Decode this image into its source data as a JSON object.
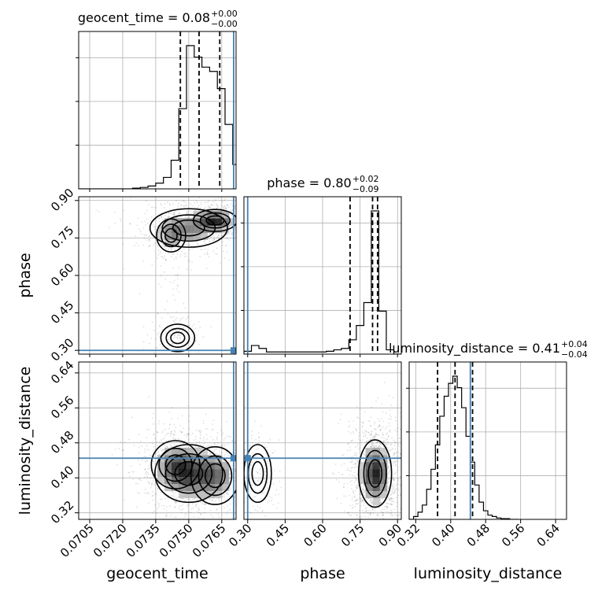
{
  "chart_data": {
    "type": "corner",
    "parameters": [
      "geocent_time",
      "phase",
      "luminosity_distance"
    ],
    "truth_color": "#4682b4",
    "truths": {
      "geocent_time": 0.07704,
      "phase": 0.3,
      "luminosity_distance": 0.445
    },
    "axes_ranges": {
      "geocent_time": [
        0.07,
        0.07715
      ],
      "phase": [
        0.285,
        0.915
      ],
      "luminosity_distance": [
        0.305,
        0.665
      ]
    },
    "ticks": {
      "geocent_time": {
        "values": [
          0.0705,
          0.072,
          0.0735,
          0.075,
          0.0765
        ],
        "labels": [
          "0.0705",
          "0.0720",
          "0.0735",
          "0.0750",
          "0.0765"
        ]
      },
      "phase": {
        "values": [
          0.3,
          0.45,
          0.6,
          0.75,
          0.9
        ],
        "labels": [
          "0.30",
          "0.45",
          "0.60",
          "0.75",
          "0.90"
        ]
      },
      "luminosity_distance": {
        "values": [
          0.32,
          0.4,
          0.48,
          0.56,
          0.64
        ],
        "labels": [
          "0.32",
          "0.40",
          "0.48",
          "0.56",
          "0.64"
        ]
      }
    },
    "titles": [
      {
        "param": "geocent_time",
        "base": "geocent_time = 0.08",
        "sup": "+0.00",
        "sub": "−0.00"
      },
      {
        "param": "phase",
        "base": "phase = 0.80",
        "sup": "+0.02",
        "sub": "−0.09"
      },
      {
        "param": "luminosity_distance",
        "base": "luminosity_distance = 0.41",
        "sup": "+0.04",
        "sub": "−0.04"
      }
    ],
    "axis_labels": {
      "x": [
        "geocent_time",
        "phase",
        "luminosity_distance"
      ],
      "y": [
        "phase",
        "luminosity_distance"
      ]
    },
    "quantiles": {
      "geocent_time": [
        0.07462,
        0.07547,
        0.07641
      ],
      "phase": [
        0.71,
        0.8,
        0.82
      ],
      "luminosity_distance": [
        0.37,
        0.41,
        0.45
      ]
    },
    "histograms": {
      "geocent_time": {
        "edges": [
          0.07,
          0.07035,
          0.0707,
          0.07105,
          0.0714,
          0.07175,
          0.0721,
          0.07245,
          0.0728,
          0.07315,
          0.0735,
          0.07385,
          0.0742,
          0.07455,
          0.0749,
          0.07525,
          0.0756,
          0.07595,
          0.0763,
          0.07665,
          0.077,
          0.07715
        ],
        "counts": [
          0.0,
          0.0,
          0.0,
          0.0,
          0.0,
          0.0,
          0.0,
          0.005,
          0.01,
          0.02,
          0.04,
          0.08,
          0.2,
          0.56,
          1.0,
          0.92,
          0.85,
          0.82,
          0.7,
          0.45,
          0.17
        ]
      },
      "phase": {
        "edges": [
          0.285,
          0.315,
          0.345,
          0.375,
          0.405,
          0.435,
          0.465,
          0.495,
          0.525,
          0.555,
          0.585,
          0.615,
          0.645,
          0.675,
          0.705,
          0.735,
          0.765,
          0.795,
          0.825,
          0.855,
          0.885,
          0.915
        ],
        "counts": [
          0.02,
          0.06,
          0.04,
          0.015,
          0.015,
          0.015,
          0.015,
          0.015,
          0.015,
          0.015,
          0.015,
          0.02,
          0.03,
          0.04,
          0.1,
          0.2,
          0.36,
          1.0,
          0.3,
          0.03,
          0.0
        ]
      },
      "luminosity_distance": {
        "edges": [
          0.305,
          0.315,
          0.325,
          0.335,
          0.345,
          0.355,
          0.365,
          0.375,
          0.385,
          0.395,
          0.405,
          0.415,
          0.425,
          0.435,
          0.445,
          0.455,
          0.465,
          0.475,
          0.485,
          0.495,
          0.505,
          0.515,
          0.525,
          0.535,
          0.545,
          0.555
        ],
        "counts": [
          0.0,
          0.02,
          0.05,
          0.1,
          0.21,
          0.35,
          0.52,
          0.72,
          0.86,
          0.95,
          1.0,
          0.92,
          0.78,
          0.58,
          0.4,
          0.24,
          0.12,
          0.06,
          0.03,
          0.02,
          0.01,
          0.005,
          0.005,
          0.0,
          0.0
        ]
      }
    },
    "density_blobs": {
      "geocent_time_vs_phase": [
        {
          "x": 0.0762,
          "y": 0.82,
          "sx": 0.00045,
          "sy": 0.02,
          "w": 1.0
        },
        {
          "x": 0.075,
          "y": 0.79,
          "sx": 0.0008,
          "sy": 0.035,
          "w": 0.55
        },
        {
          "x": 0.0742,
          "y": 0.76,
          "sx": 0.0003,
          "sy": 0.03,
          "w": 0.3
        },
        {
          "x": 0.0744,
          "y": 0.6,
          "sx": 0.0002,
          "sy": 0.14,
          "w": 0.12
        },
        {
          "x": 0.0745,
          "y": 0.35,
          "sx": 0.00035,
          "sy": 0.025,
          "w": 0.18
        }
      ],
      "geocent_time_vs_luminosity_distance": [
        {
          "x": 0.075,
          "y": 0.41,
          "sx": 0.0007,
          "sy": 0.03,
          "w": 1.0
        },
        {
          "x": 0.0744,
          "y": 0.43,
          "sx": 0.0005,
          "sy": 0.025,
          "w": 0.6
        },
        {
          "x": 0.0762,
          "y": 0.405,
          "sx": 0.0005,
          "sy": 0.03,
          "w": 0.7
        }
      ],
      "phase_vs_luminosity_distance": [
        {
          "x": 0.81,
          "y": 0.41,
          "sx": 0.03,
          "sy": 0.035,
          "w": 1.0
        },
        {
          "x": 0.34,
          "y": 0.41,
          "sx": 0.025,
          "sy": 0.03,
          "w": 0.15
        }
      ]
    },
    "grid": true
  }
}
